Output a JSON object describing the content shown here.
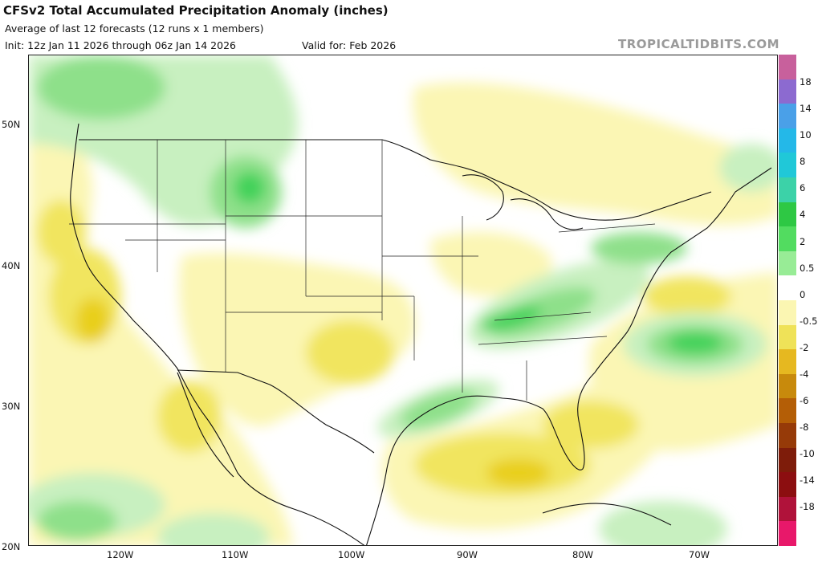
{
  "header": {
    "title": "CFSv2 Total Accumulated Precipitation Anomaly (inches)",
    "subtitle": "Average of last 12 forecasts (12 runs x 1 members)",
    "init": "Init: 12z Jan 11 2026 through 06z Jan 14 2026",
    "valid": "Valid for: Feb 2026",
    "brand": "TROPICALTIDBITS.COM"
  },
  "map": {
    "lat_labels": [
      "50N",
      "40N",
      "30N",
      "20N"
    ],
    "lon_labels": [
      "120W",
      "110W",
      "100W",
      "90W",
      "80W",
      "70W"
    ],
    "lon_range": [
      -127,
      -65
    ],
    "lat_range": [
      20,
      55
    ]
  },
  "colorbar": {
    "labels": [
      "18",
      "14",
      "10",
      "8",
      "6",
      "4",
      "2",
      "0.5",
      "0",
      "-0.5",
      "-2",
      "-4",
      "-6",
      "-8",
      "-10",
      "-14",
      "-18"
    ],
    "colors": [
      "#c8609c",
      "#8c6ad0",
      "#4aa0e8",
      "#24b8e8",
      "#20c8d8",
      "#3cd2a8",
      "#2ec844",
      "#52dc60",
      "#98ec96",
      "#ffffff",
      "#fbf6b2",
      "#efe258",
      "#e6b820",
      "#c88a0c",
      "#b45e06",
      "#963a08",
      "#7e1c0a",
      "#8c0e10",
      "#b0123a",
      "#e8186a"
    ],
    "neutral_color": "#ffffff"
  },
  "anomaly_colors": {
    "wet_light": "#c8f0c0",
    "wet_medium": "#8ee08a",
    "wet_strong": "#42d25a",
    "dry_light": "#fbf6b4",
    "dry_medium": "#f1e55e",
    "dry_strong": "#e9cf1e"
  }
}
